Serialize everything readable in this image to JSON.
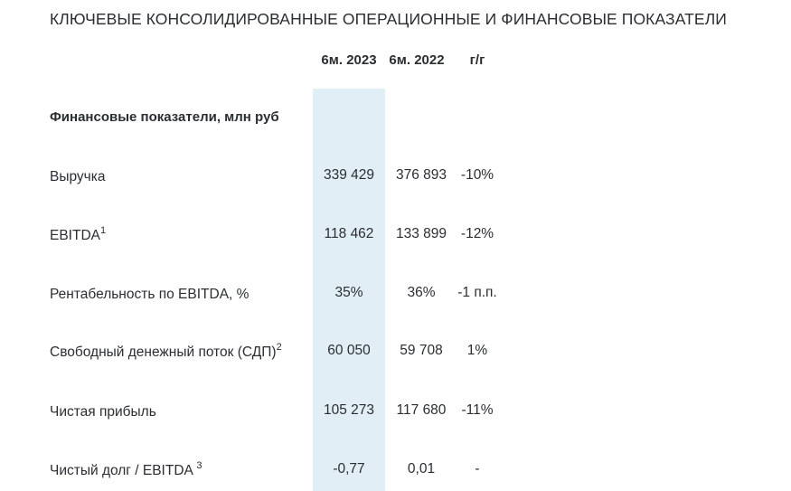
{
  "title": "КЛЮЧЕВЫЕ КОНСОЛИДИРОВАННЫЕ ОПЕРАЦИОННЫЕ И ФИНАНСОВЫЕ ПОКАЗАТЕЛИ",
  "columns": [
    "6м. 2023",
    "6м. 2022",
    "г/г"
  ],
  "section": "Финансовые показатели, млн руб",
  "rows": [
    {
      "label": "Выручка",
      "sup": "",
      "v2023": "339 429",
      "v2022": "376 893",
      "yoy": "-10%"
    },
    {
      "label": "EBITDA",
      "sup": "1",
      "v2023": "118 462",
      "v2022": "133 899",
      "yoy": "-12%"
    },
    {
      "label": "Рентабельность по EBITDA, %",
      "sup": "",
      "v2023": "35%",
      "v2022": "36%",
      "yoy": "-1 п.п."
    },
    {
      "label": "Свободный денежный поток (СДП)",
      "sup": "2",
      "v2023": "60 050",
      "v2022": "59 708",
      "yoy": "1%"
    },
    {
      "label": "Чистая прибыль",
      "sup": "",
      "v2023": "105 273",
      "v2022": "117 680",
      "yoy": "-11%"
    },
    {
      "label": "Чистый долг / EBITDA ",
      "sup": "3",
      "v2023": "-0,77",
      "v2022": "0,01",
      "yoy": "-"
    }
  ],
  "colors": {
    "highlight": "#e1eef5",
    "text": "#2a2e33"
  }
}
